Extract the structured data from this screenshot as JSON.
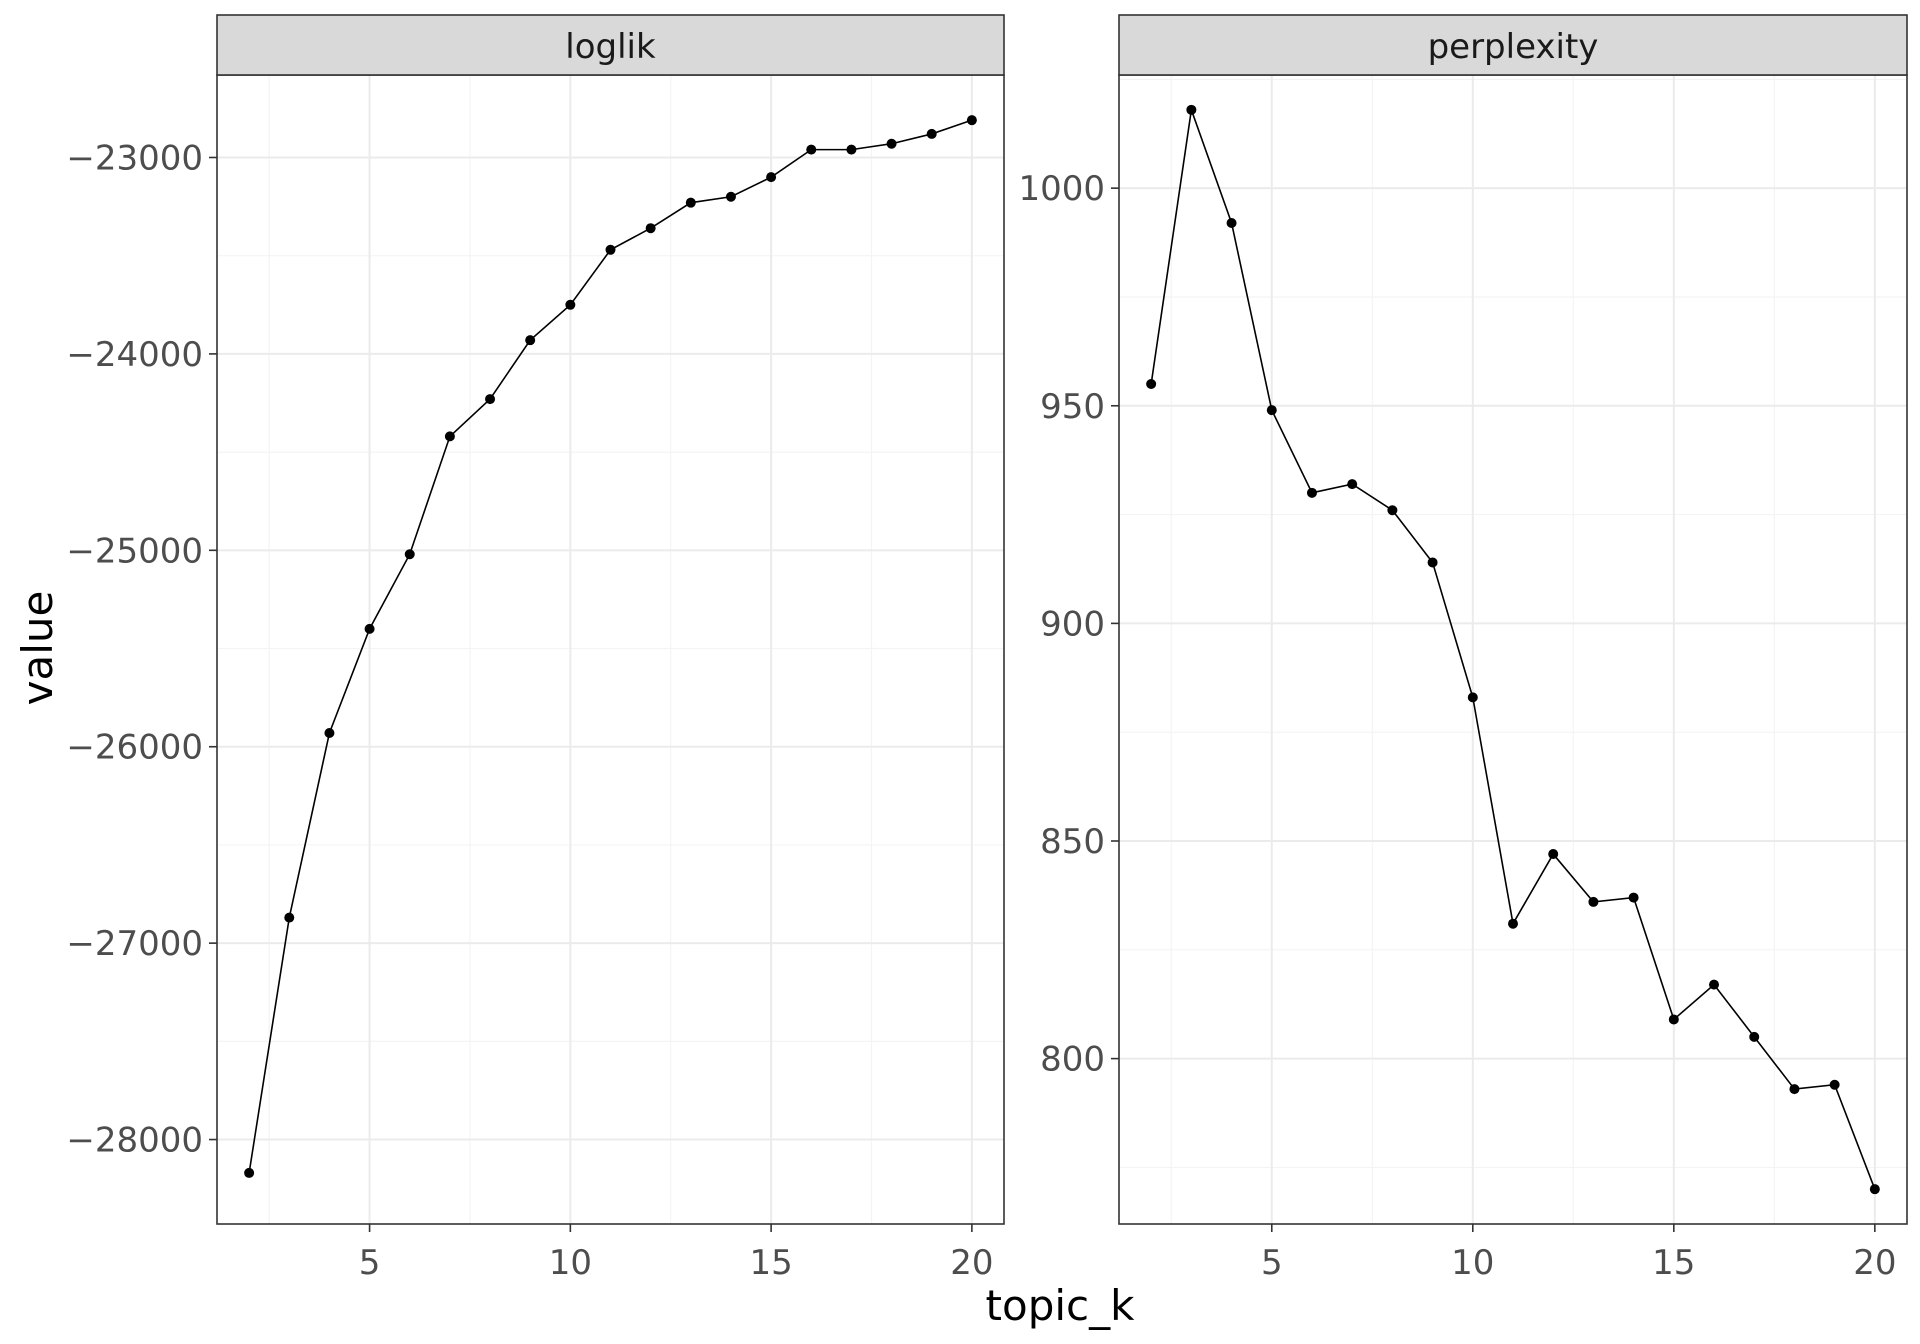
{
  "chart_data": [
    {
      "type": "line",
      "panel": "loglik",
      "x": [
        2,
        3,
        4,
        5,
        6,
        7,
        8,
        9,
        10,
        11,
        12,
        13,
        14,
        15,
        16,
        17,
        18,
        19,
        20
      ],
      "values": [
        -28170,
        -26870,
        -25930,
        -25400,
        -25020,
        -24420,
        -24230,
        -23930,
        -23750,
        -23470,
        -23360,
        -23230,
        -23200,
        -23100,
        -22960,
        -22960,
        -22930,
        -22880,
        -22810
      ],
      "xlim": [
        1.2,
        20.8
      ],
      "ylim": [
        -28430,
        -22580
      ],
      "x_ticks": [
        5,
        10,
        15,
        20
      ],
      "y_ticks": [
        -28000,
        -27000,
        -26000,
        -25000,
        -24000,
        -23000
      ],
      "y_tick_labels": [
        "−28000",
        "−27000",
        "−26000",
        "−25000",
        "−24000",
        "−23000"
      ],
      "grid": true
    },
    {
      "type": "line",
      "panel": "perplexity",
      "x": [
        2,
        3,
        4,
        5,
        6,
        7,
        8,
        9,
        10,
        11,
        12,
        13,
        14,
        15,
        16,
        17,
        18,
        19,
        20
      ],
      "values": [
        955,
        1018,
        992,
        949,
        930,
        932,
        926,
        914,
        883,
        831,
        847,
        836,
        837,
        809,
        817,
        805,
        793,
        794,
        770
      ],
      "xlim": [
        1.2,
        20.8
      ],
      "ylim": [
        762,
        1026
      ],
      "x_ticks": [
        5,
        10,
        15,
        20
      ],
      "y_ticks": [
        800,
        850,
        900,
        950,
        1000
      ],
      "y_tick_labels": [
        "800",
        "850",
        "900",
        "950",
        "1000"
      ],
      "grid": true
    }
  ],
  "labels": {
    "xlabel": "topic_k",
    "ylabel": "value",
    "panel_titles": [
      "loglik",
      "perplexity"
    ]
  }
}
